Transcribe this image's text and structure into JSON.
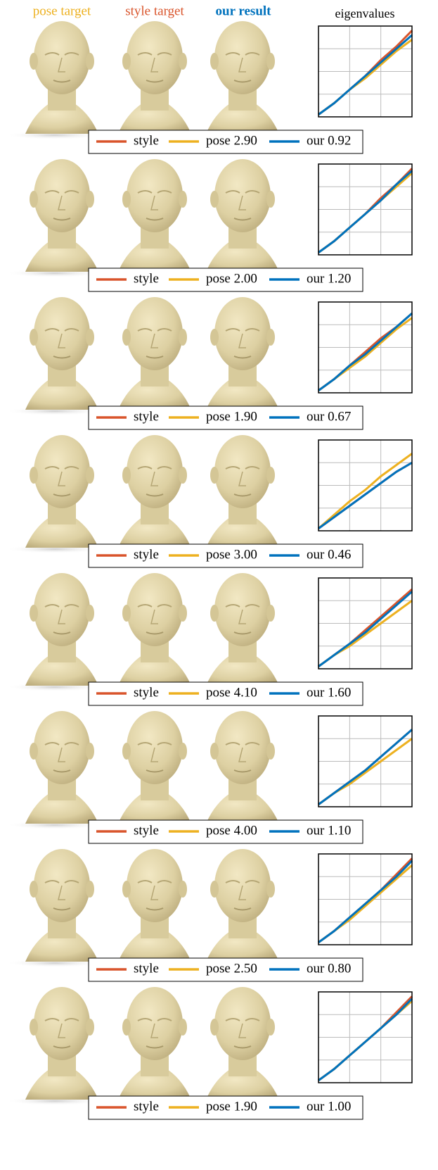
{
  "header": {
    "pose": "pose target",
    "style": "style target",
    "result": "our result",
    "chart": "eigenvalues"
  },
  "rows": [
    {
      "chart_data": {
        "type": "line",
        "x": [
          0,
          0.5,
          1,
          1.5,
          2,
          2.5,
          3
        ],
        "xlim": [
          0,
          3
        ],
        "ylim": [
          0,
          4
        ],
        "xticks": [
          1,
          2
        ],
        "yticks": [
          1,
          2,
          3
        ],
        "grid": true,
        "series": [
          {
            "name": "style",
            "color": "#d9542b",
            "values": [
              0.1,
              0.6,
              1.2,
              1.8,
              2.5,
              3.1,
              3.8
            ]
          },
          {
            "name": "pose 2.90",
            "color": "#edb120",
            "values": [
              0.1,
              0.6,
              1.2,
              1.7,
              2.3,
              2.9,
              3.4
            ]
          },
          {
            "name": "our 0.92",
            "color": "#0072bd",
            "values": [
              0.1,
              0.6,
              1.2,
              1.8,
              2.4,
              3.0,
              3.6
            ]
          }
        ]
      }
    },
    {
      "chart_data": {
        "type": "line",
        "x": [
          0,
          0.5,
          1,
          1.5,
          2,
          2.5,
          3
        ],
        "xlim": [
          0,
          3
        ],
        "ylim": [
          0,
          4
        ],
        "xticks": [
          1,
          2
        ],
        "yticks": [
          1,
          2,
          3
        ],
        "grid": true,
        "series": [
          {
            "name": "style",
            "color": "#d9542b",
            "values": [
              0.1,
              0.6,
              1.2,
              1.8,
              2.5,
              3.1,
              3.8
            ]
          },
          {
            "name": "pose 2.00",
            "color": "#edb120",
            "values": [
              0.1,
              0.6,
              1.2,
              1.8,
              2.4,
              3.0,
              3.6
            ]
          },
          {
            "name": "our 1.20",
            "color": "#0072bd",
            "values": [
              0.1,
              0.6,
              1.2,
              1.8,
              2.4,
              3.1,
              3.7
            ]
          }
        ]
      }
    },
    {
      "chart_data": {
        "type": "line",
        "x": [
          0,
          0.5,
          1,
          1.5,
          2,
          2.5,
          3
        ],
        "xlim": [
          0,
          3
        ],
        "ylim": [
          0,
          4
        ],
        "xticks": [
          1,
          2
        ],
        "yticks": [
          1,
          2,
          3
        ],
        "grid": true,
        "series": [
          {
            "name": "style",
            "color": "#d9542b",
            "values": [
              0.1,
              0.6,
              1.2,
              1.8,
              2.4,
              2.9,
              3.5
            ]
          },
          {
            "name": "pose 1.90",
            "color": "#edb120",
            "values": [
              0.1,
              0.6,
              1.1,
              1.6,
              2.2,
              2.8,
              3.3
            ]
          },
          {
            "name": "our 0.67",
            "color": "#0072bd",
            "values": [
              0.1,
              0.6,
              1.2,
              1.7,
              2.3,
              2.9,
              3.5
            ]
          }
        ]
      }
    },
    {
      "chart_data": {
        "type": "line",
        "x": [
          0,
          0.5,
          1,
          1.5,
          2,
          2.5,
          3
        ],
        "xlim": [
          0,
          3
        ],
        "ylim": [
          0,
          4
        ],
        "xticks": [
          1,
          2
        ],
        "yticks": [
          1,
          2,
          3
        ],
        "grid": true,
        "series": [
          {
            "name": "style",
            "color": "#d9542b",
            "values": [
              0.1,
              0.6,
              1.1,
              1.6,
              2.1,
              2.6,
              3.0
            ]
          },
          {
            "name": "pose 3.00",
            "color": "#edb120",
            "values": [
              0.1,
              0.7,
              1.3,
              1.8,
              2.4,
              2.9,
              3.4
            ]
          },
          {
            "name": "our 0.46",
            "color": "#0072bd",
            "values": [
              0.1,
              0.6,
              1.1,
              1.6,
              2.1,
              2.6,
              3.0
            ]
          }
        ]
      }
    },
    {
      "chart_data": {
        "type": "line",
        "x": [
          0,
          0.5,
          1,
          1.5,
          2,
          2.5,
          3
        ],
        "xlim": [
          0,
          3
        ],
        "ylim": [
          0,
          4
        ],
        "xticks": [
          1,
          2
        ],
        "yticks": [
          1,
          2,
          3
        ],
        "grid": true,
        "series": [
          {
            "name": "style",
            "color": "#d9542b",
            "values": [
              0.1,
              0.6,
              1.1,
              1.7,
              2.3,
              2.9,
              3.5
            ]
          },
          {
            "name": "pose 4.10",
            "color": "#edb120",
            "values": [
              0.1,
              0.6,
              1.0,
              1.5,
              2.0,
              2.5,
              3.0
            ]
          },
          {
            "name": "our 1.60",
            "color": "#0072bd",
            "values": [
              0.1,
              0.6,
              1.1,
              1.6,
              2.2,
              2.8,
              3.4
            ]
          }
        ]
      }
    },
    {
      "chart_data": {
        "type": "line",
        "x": [
          0,
          0.5,
          1,
          1.5,
          2,
          2.5,
          3
        ],
        "xlim": [
          0,
          3
        ],
        "ylim": [
          0,
          4
        ],
        "xticks": [
          1,
          2
        ],
        "yticks": [
          1,
          2,
          3
        ],
        "grid": true,
        "series": [
          {
            "name": "style",
            "color": "#d9542b",
            "values": [
              0.1,
              0.6,
              1.1,
              1.6,
              2.2,
              2.8,
              3.4
            ]
          },
          {
            "name": "pose 4.00",
            "color": "#edb120",
            "values": [
              0.1,
              0.6,
              1.0,
              1.5,
              2.0,
              2.5,
              3.0
            ]
          },
          {
            "name": "our 1.10",
            "color": "#0072bd",
            "values": [
              0.1,
              0.6,
              1.1,
              1.6,
              2.2,
              2.8,
              3.4
            ]
          }
        ]
      }
    },
    {
      "chart_data": {
        "type": "line",
        "x": [
          0,
          0.5,
          1,
          1.5,
          2,
          2.5,
          3
        ],
        "xlim": [
          0,
          3
        ],
        "ylim": [
          0,
          4
        ],
        "xticks": [
          1,
          2
        ],
        "yticks": [
          1,
          2,
          3
        ],
        "grid": true,
        "series": [
          {
            "name": "style",
            "color": "#d9542b",
            "values": [
              0.1,
              0.6,
              1.2,
              1.8,
              2.4,
              3.1,
              3.8
            ]
          },
          {
            "name": "pose 2.50",
            "color": "#edb120",
            "values": [
              0.1,
              0.6,
              1.1,
              1.7,
              2.3,
              2.9,
              3.5
            ]
          },
          {
            "name": "our 0.80",
            "color": "#0072bd",
            "values": [
              0.1,
              0.6,
              1.2,
              1.8,
              2.4,
              3.0,
              3.7
            ]
          }
        ]
      }
    },
    {
      "chart_data": {
        "type": "line",
        "x": [
          0,
          0.5,
          1,
          1.5,
          2,
          2.5,
          3
        ],
        "xlim": [
          0,
          3
        ],
        "ylim": [
          0,
          4
        ],
        "xticks": [
          1,
          2
        ],
        "yticks": [
          1,
          2,
          3
        ],
        "grid": true,
        "series": [
          {
            "name": "style",
            "color": "#d9542b",
            "values": [
              0.1,
              0.6,
              1.2,
              1.8,
              2.4,
              3.1,
              3.8
            ]
          },
          {
            "name": "pose 1.90",
            "color": "#edb120",
            "values": [
              0.1,
              0.6,
              1.2,
              1.8,
              2.4,
              3.0,
              3.6
            ]
          },
          {
            "name": "our 1.00",
            "color": "#0072bd",
            "values": [
              0.1,
              0.6,
              1.2,
              1.8,
              2.4,
              3.0,
              3.7
            ]
          }
        ]
      }
    }
  ]
}
